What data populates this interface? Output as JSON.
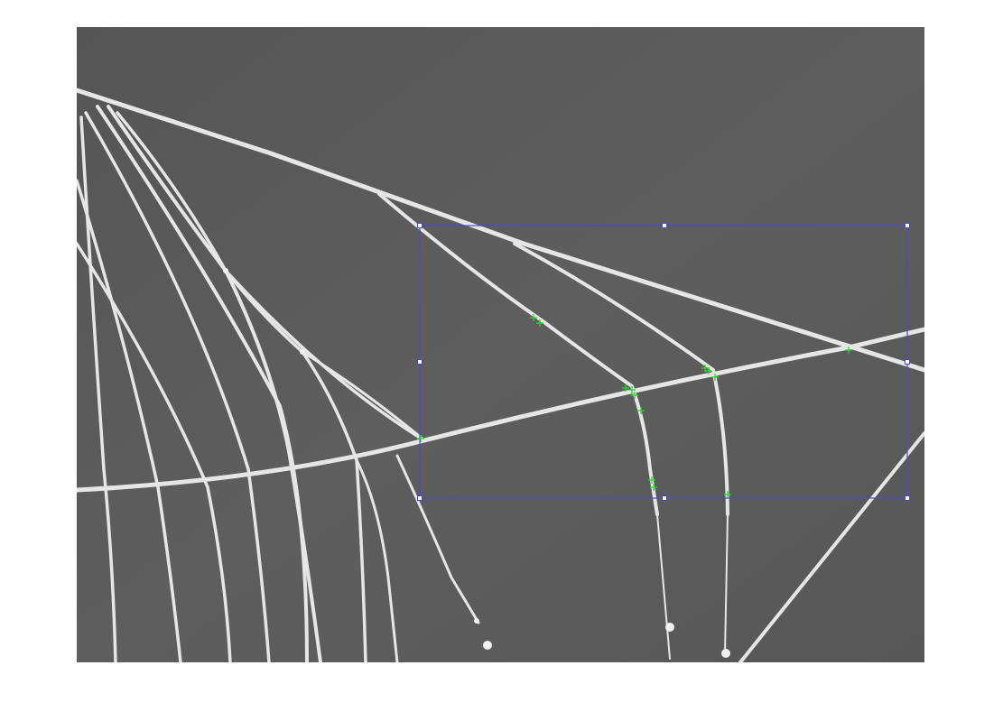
{
  "figure": {
    "background_color": "#ffffff",
    "image_description_tag": "spider-web-threads-grayscale",
    "image_background_color": "#5a5a5a",
    "thread_color": "#e6e6e6"
  },
  "roi": {
    "shape": "rectangle",
    "stroke_color": "#4b4bd2",
    "handle_count": 8
  },
  "feature_markers": {
    "symbol": "+",
    "color": "#2bd92b",
    "count": 14
  }
}
